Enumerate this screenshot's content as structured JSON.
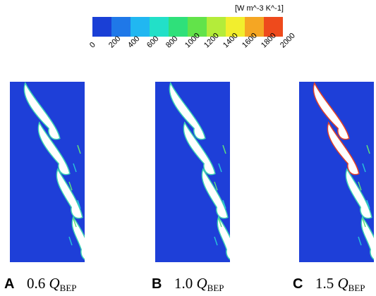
{
  "colorbar": {
    "unit": "[W m^-3 K^-1]",
    "colors": [
      "#1a3fd6",
      "#1f78e8",
      "#21b7f1",
      "#22e0c8",
      "#2fe07a",
      "#62e34a",
      "#b4ec3a",
      "#f2ee2d",
      "#f5a623",
      "#ee4a1c"
    ],
    "ticks": [
      "0",
      "200",
      "400",
      "600",
      "800",
      "1000",
      "1200",
      "1400",
      "1600",
      "1800",
      "2000"
    ]
  },
  "field_color": "#1e3fd8",
  "panels": [
    {
      "letter": "A",
      "value": "0.6",
      "q": "Q",
      "sub": "BEP"
    },
    {
      "letter": "B",
      "value": "1.0",
      "q": "Q",
      "sub": "BEP"
    },
    {
      "letter": "C",
      "value": "1.5",
      "q": "Q",
      "sub": "BEP"
    }
  ]
}
